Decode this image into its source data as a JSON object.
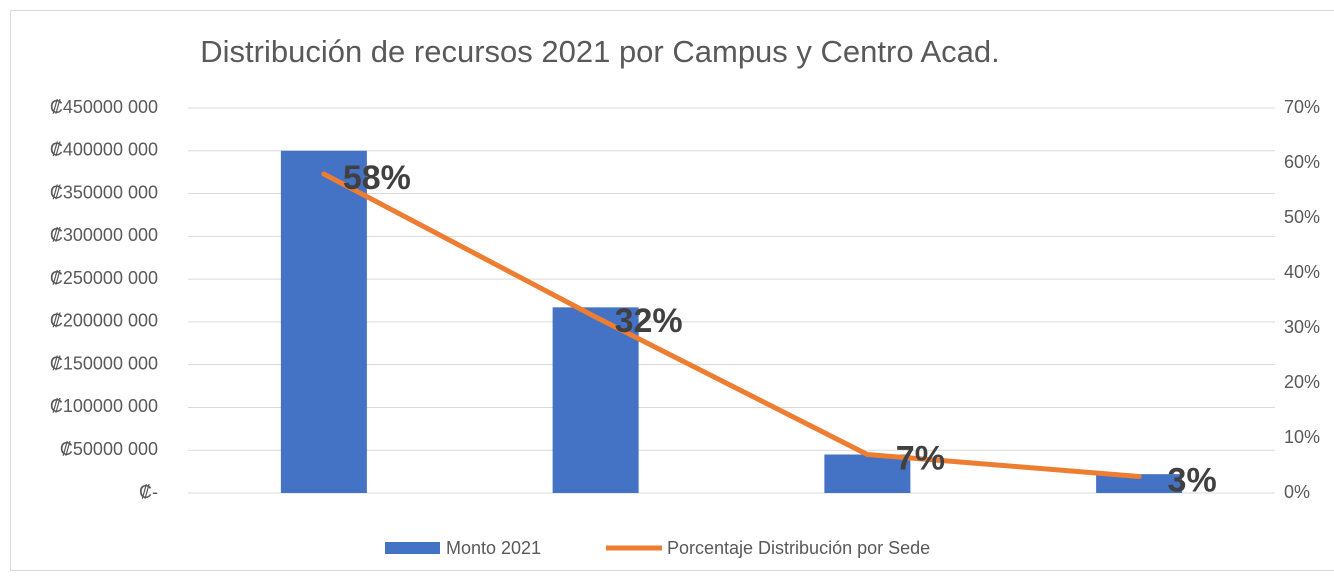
{
  "chart_data": {
    "type": "bar",
    "title": "Distribución de recursos 2021 por Campus y Centro Acad.",
    "categories": [
      null,
      null,
      null,
      null
    ],
    "series": [
      {
        "name": "Monto 2021",
        "type": "bar",
        "axis": "y",
        "color": "#4472c4",
        "values": [
          400000000,
          217000000,
          45000000,
          22000000
        ]
      },
      {
        "name": "Porcentaje Distribución por Sede",
        "type": "line",
        "axis": "y2",
        "color": "#ed7d31",
        "values": [
          58,
          32,
          7,
          3
        ],
        "value_labels": [
          "58%",
          "32%",
          "7%",
          "3%"
        ]
      }
    ],
    "ylim": [
      0,
      450000000
    ],
    "yticks": [
      {
        "value": 0,
        "label": "₡-"
      },
      {
        "value": 50000000,
        "label": "₡50000 000"
      },
      {
        "value": 100000000,
        "label": "₡100000 000"
      },
      {
        "value": 150000000,
        "label": "₡150000 000"
      },
      {
        "value": 200000000,
        "label": "₡200000 000"
      },
      {
        "value": 250000000,
        "label": "₡250000 000"
      },
      {
        "value": 300000000,
        "label": "₡300000 000"
      },
      {
        "value": 350000000,
        "label": "₡350000 000"
      },
      {
        "value": 400000000,
        "label": "₡400000 000"
      },
      {
        "value": 450000000,
        "label": "₡450000 000"
      }
    ],
    "y2lim": [
      0,
      70
    ],
    "y2ticks": [
      {
        "value": 0,
        "label": "0%"
      },
      {
        "value": 10,
        "label": "10%"
      },
      {
        "value": 20,
        "label": "20%"
      },
      {
        "value": 30,
        "label": "30%"
      },
      {
        "value": 40,
        "label": "40%"
      },
      {
        "value": 50,
        "label": "50%"
      },
      {
        "value": 60,
        "label": "60%"
      },
      {
        "value": 70,
        "label": "70%"
      }
    ],
    "grid": true,
    "legend": "bottom"
  }
}
